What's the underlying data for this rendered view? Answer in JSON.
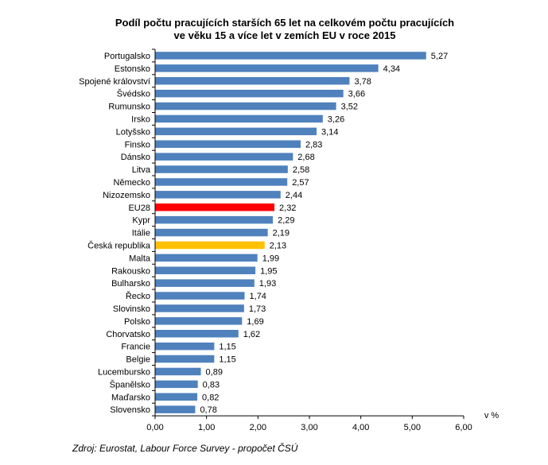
{
  "chart_data": {
    "type": "bar",
    "orientation": "horizontal",
    "title": [
      "Podíl počtu pracujících starších 65 let na celkovém počtu pracujících",
      "ve věku 15 a více let v zemích EU v roce 2015"
    ],
    "xlabel": "v %",
    "ylabel": "",
    "xlim": [
      0,
      6
    ],
    "x_ticks": [
      "0,00",
      "1,00",
      "2,00",
      "3,00",
      "4,00",
      "5,00",
      "6,00"
    ],
    "grid": false,
    "categories": [
      "Portugalsko",
      "Estonsko",
      "Spojené království",
      "Švédsko",
      "Rumunsko",
      "Irsko",
      "Lotyšsko",
      "Finsko",
      "Dánsko",
      "Litva",
      "Německo",
      "Nizozemsko",
      "EU28",
      "Kypr",
      "Itálie",
      "Česká republika",
      "Malta",
      "Rakousko",
      "Bulharsko",
      "Řecko",
      "Slovinsko",
      "Polsko",
      "Chorvatsko",
      "Francie",
      "Belgie",
      "Lucembursko",
      "Španělsko",
      "Maďarsko",
      "Slovensko"
    ],
    "values": [
      5.27,
      4.34,
      3.78,
      3.66,
      3.52,
      3.26,
      3.14,
      2.83,
      2.68,
      2.58,
      2.57,
      2.44,
      2.32,
      2.29,
      2.19,
      2.13,
      1.99,
      1.95,
      1.93,
      1.74,
      1.73,
      1.69,
      1.62,
      1.15,
      1.15,
      0.89,
      0.83,
      0.82,
      0.78
    ],
    "value_labels": [
      "5,27",
      "4,34",
      "3,78",
      "3,66",
      "3,52",
      "3,26",
      "3,14",
      "2,83",
      "2,68",
      "2,58",
      "2,57",
      "2,44",
      "2,32",
      "2,29",
      "2,19",
      "2,13",
      "1,99",
      "1,95",
      "1,93",
      "1,74",
      "1,73",
      "1,69",
      "1,62",
      "1,15",
      "1,15",
      "0,89",
      "0,83",
      "0,82",
      "0,78"
    ],
    "colors": {
      "default": "#4F81BD",
      "highlights": {
        "EU28": "#FF0000",
        "Česká republika": "#FFC000"
      },
      "axis": "#000000"
    },
    "source": "Zdroj: Eurostat, Labour Force Survey - propočet ČSÚ"
  }
}
